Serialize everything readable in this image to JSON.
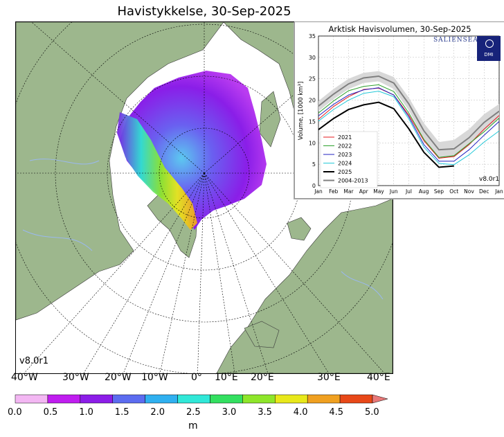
{
  "map": {
    "title": "Havistykkelse, 30-Sep-2025",
    "version": "v8.0r1",
    "lon_labels": [
      "40°W",
      "30°W",
      "20°W",
      "10°W",
      "0°",
      "10°E",
      "20°E",
      "30°E",
      "40°E"
    ]
  },
  "colorbar": {
    "unit": "m",
    "ticks": [
      "0.0",
      "0.5",
      "1.0",
      "1.5",
      "2.0",
      "2.5",
      "3.0",
      "3.5",
      "4.0",
      "4.5",
      "5.0"
    ],
    "colors": [
      "#f3b7f3",
      "#c01df0",
      "#8c1de8",
      "#5c6cf0",
      "#2fb0f0",
      "#30e8d8",
      "#33e060",
      "#8ee62a",
      "#e8e81a",
      "#f0a020",
      "#e84818",
      "#e87878"
    ]
  },
  "inset": {
    "title": "Arktisk Havisvolumen, 30-Sep-2025",
    "logo_text": "SALIENSEAS",
    "dmi_text": "DMI",
    "version": "v8.0r1",
    "chart_data": {
      "type": "line",
      "xlabel": "",
      "ylabel": "Volume, [1000 km³]",
      "ylim": [
        0,
        35
      ],
      "yticks": [
        0,
        5,
        10,
        15,
        20,
        25,
        30,
        35
      ],
      "x_categories": [
        "Jan",
        "Feb",
        "Mar",
        "Apr",
        "May",
        "Jun",
        "Jul",
        "Aug",
        "Sep",
        "Oct",
        "Nov",
        "Dec",
        "Jan"
      ],
      "grid": true,
      "legend_position": "lower-left",
      "series": [
        {
          "name": "2021",
          "color": "#e41a1c",
          "x": [
            0,
            1,
            2,
            3,
            4,
            5,
            6,
            7,
            8,
            9,
            10,
            11,
            12
          ],
          "y": [
            15.5,
            18.5,
            20.8,
            22.5,
            22.8,
            21.2,
            16.5,
            10.5,
            6.4,
            6.8,
            9.6,
            13.2,
            16.4
          ]
        },
        {
          "name": "2022",
          "color": "#2ca02c",
          "x": [
            0,
            1,
            2,
            3,
            4,
            5,
            6,
            7,
            8,
            9,
            10,
            11,
            12
          ],
          "y": [
            17,
            19.8,
            22.2,
            23.2,
            23.6,
            22,
            17,
            10.8,
            6.6,
            7,
            9.8,
            12.6,
            15.8
          ]
        },
        {
          "name": "2023",
          "color": "#2020c0",
          "x": [
            0,
            1,
            2,
            3,
            4,
            5,
            6,
            7,
            8,
            9,
            10,
            11,
            12
          ],
          "y": [
            16.3,
            19,
            21.2,
            22.4,
            22.9,
            21.2,
            16.1,
            9.6,
            5.7,
            5.7,
            8.4,
            11.8,
            15
          ]
        },
        {
          "name": "2024",
          "color": "#22c8d8",
          "x": [
            0,
            1,
            2,
            3,
            4,
            5,
            6,
            7,
            8,
            9,
            10,
            11,
            12
          ],
          "y": [
            15.1,
            17.8,
            20,
            21.6,
            22.1,
            20.8,
            15.6,
            9,
            5.2,
            4.9,
            7.2,
            10.2,
            12.8
          ]
        },
        {
          "name": "2025",
          "color": "#000000",
          "x": [
            0,
            1,
            2,
            3,
            4,
            5,
            6,
            7,
            8,
            9
          ],
          "y": [
            13.1,
            15.7,
            17.8,
            18.9,
            19.5,
            18,
            13.3,
            7.8,
            4.3,
            4.6
          ]
        },
        {
          "name": "2004-2013",
          "color": "#7f7f7f",
          "x": [
            0,
            1,
            2,
            3,
            4,
            5,
            6,
            7,
            8,
            9,
            10,
            11,
            12
          ],
          "y": [
            18.6,
            21.4,
            23.8,
            25.2,
            25.6,
            24,
            19.1,
            12.8,
            8.4,
            8.6,
            11.2,
            14.8,
            17.4
          ],
          "band_low": [
            17.4,
            20.2,
            22.6,
            24,
            24.4,
            22.6,
            17.6,
            11,
            6.6,
            6.6,
            9.3,
            12.9,
            15.7
          ],
          "band_high": [
            19.8,
            22.6,
            25,
            26.4,
            26.8,
            25.4,
            20.6,
            14.6,
            10.2,
            10.7,
            13.2,
            16.7,
            19.1
          ]
        }
      ]
    }
  }
}
